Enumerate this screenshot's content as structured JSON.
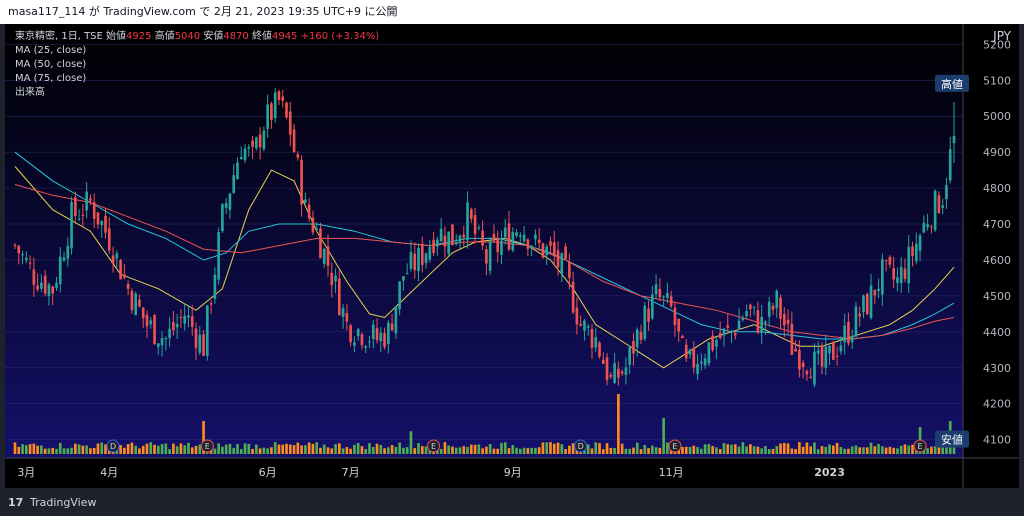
{
  "header": {
    "publish_line": "masa117_114 が TradingView.com で 2月 21, 2023 19:35 UTC+9 に公開"
  },
  "legend": {
    "symbol_line": "東京精密, 1日, TSE",
    "open_label": "始値",
    "open": "4925",
    "high_label": "高値",
    "high": "5040",
    "low_label": "安値",
    "low": "4870",
    "close_label": "終値",
    "close": "4945",
    "change": "+160 (+3.34%)",
    "ma25": "MA (25, close)",
    "ma50": "MA (50, close)",
    "ma75": "MA (75, close)",
    "volume": "出来高"
  },
  "axis": {
    "currency": "JPY",
    "high_tag": "高値",
    "low_tag": "安値"
  },
  "footer": {
    "brand": "TradingView",
    "logo_glyph": "17"
  },
  "colors": {
    "up": "#26a69a",
    "down": "#ef5350",
    "vol_up": "#4caf50",
    "vol_down": "#ff8c1a",
    "ma25": "#e8d44d",
    "ma50": "#26c6da",
    "ma75": "#ef5350",
    "bg_top": "#000000",
    "bg_bottom": "#14106a",
    "tag_bg": "#1c3d6e"
  },
  "chart_data": {
    "type": "candlestick",
    "title": "東京精密, 1日, TSE",
    "ylabel": "JPY",
    "ylim": [
      4060,
      5240
    ],
    "y_ticks": [
      4100,
      4200,
      4300,
      4400,
      4500,
      4600,
      4700,
      4800,
      4900,
      5000,
      5100,
      5200
    ],
    "x_ticks": [
      {
        "label": "3月",
        "day": 3
      },
      {
        "label": "4月",
        "day": 25
      },
      {
        "label": "6月",
        "day": 67
      },
      {
        "label": "7月",
        "day": 89
      },
      {
        "label": "9月",
        "day": 132
      },
      {
        "label": "11月",
        "day": 174
      },
      {
        "label": "2023",
        "day": 216
      }
    ],
    "event_markers": [
      {
        "label": "D",
        "day": 26
      },
      {
        "label": "E",
        "day": 51
      },
      {
        "label": "E",
        "day": 111
      },
      {
        "label": "D",
        "day": 150
      },
      {
        "label": "E",
        "day": 175
      },
      {
        "label": "E",
        "day": 240
      }
    ],
    "close_path": [
      [
        0,
        4640
      ],
      [
        5,
        4560
      ],
      [
        10,
        4520
      ],
      [
        15,
        4720
      ],
      [
        20,
        4760
      ],
      [
        25,
        4660
      ],
      [
        30,
        4520
      ],
      [
        35,
        4420
      ],
      [
        40,
        4380
      ],
      [
        45,
        4450
      ],
      [
        50,
        4360
      ],
      [
        55,
        4720
      ],
      [
        60,
        4920
      ],
      [
        63,
        4880
      ],
      [
        66,
        4980
      ],
      [
        70,
        5040
      ],
      [
        73,
        4960
      ],
      [
        77,
        4740
      ],
      [
        80,
        4680
      ],
      [
        84,
        4560
      ],
      [
        88,
        4420
      ],
      [
        92,
        4400
      ],
      [
        96,
        4380
      ],
      [
        99,
        4400
      ],
      [
        103,
        4560
      ],
      [
        107,
        4600
      ],
      [
        112,
        4680
      ],
      [
        116,
        4660
      ],
      [
        120,
        4720
      ],
      [
        125,
        4600
      ],
      [
        130,
        4660
      ],
      [
        134,
        4700
      ],
      [
        138,
        4640
      ],
      [
        142,
        4620
      ],
      [
        146,
        4560
      ],
      [
        150,
        4420
      ],
      [
        154,
        4380
      ],
      [
        158,
        4260
      ],
      [
        162,
        4300
      ],
      [
        166,
        4420
      ],
      [
        170,
        4500
      ],
      [
        174,
        4460
      ],
      [
        178,
        4300
      ],
      [
        182,
        4340
      ],
      [
        186,
        4380
      ],
      [
        190,
        4400
      ],
      [
        194,
        4460
      ],
      [
        198,
        4420
      ],
      [
        202,
        4480
      ],
      [
        206,
        4360
      ],
      [
        210,
        4320
      ],
      [
        214,
        4300
      ],
      [
        218,
        4360
      ],
      [
        222,
        4420
      ],
      [
        226,
        4480
      ],
      [
        230,
        4560
      ],
      [
        234,
        4540
      ],
      [
        238,
        4620
      ],
      [
        242,
        4720
      ],
      [
        246,
        4780
      ],
      [
        249,
        4945
      ]
    ],
    "series": [
      {
        "name": "MA (25, close)",
        "points": [
          [
            0,
            4860
          ],
          [
            10,
            4740
          ],
          [
            20,
            4680
          ],
          [
            28,
            4560
          ],
          [
            38,
            4520
          ],
          [
            48,
            4460
          ],
          [
            55,
            4520
          ],
          [
            62,
            4740
          ],
          [
            68,
            4850
          ],
          [
            74,
            4820
          ],
          [
            80,
            4680
          ],
          [
            88,
            4540
          ],
          [
            94,
            4450
          ],
          [
            98,
            4440
          ],
          [
            104,
            4500
          ],
          [
            110,
            4560
          ],
          [
            116,
            4620
          ],
          [
            122,
            4650
          ],
          [
            130,
            4660
          ],
          [
            136,
            4640
          ],
          [
            142,
            4600
          ],
          [
            148,
            4520
          ],
          [
            154,
            4420
          ],
          [
            160,
            4380
          ],
          [
            166,
            4340
          ],
          [
            172,
            4300
          ],
          [
            178,
            4340
          ],
          [
            184,
            4380
          ],
          [
            190,
            4400
          ],
          [
            196,
            4420
          ],
          [
            202,
            4390
          ],
          [
            208,
            4360
          ],
          [
            214,
            4360
          ],
          [
            220,
            4380
          ],
          [
            226,
            4400
          ],
          [
            232,
            4420
          ],
          [
            238,
            4460
          ],
          [
            244,
            4520
          ],
          [
            249,
            4580
          ]
        ]
      },
      {
        "name": "MA (50, close)",
        "points": [
          [
            0,
            4900
          ],
          [
            10,
            4820
          ],
          [
            20,
            4760
          ],
          [
            30,
            4700
          ],
          [
            40,
            4660
          ],
          [
            50,
            4600
          ],
          [
            56,
            4620
          ],
          [
            62,
            4680
          ],
          [
            70,
            4700
          ],
          [
            80,
            4700
          ],
          [
            90,
            4680
          ],
          [
            100,
            4650
          ],
          [
            110,
            4640
          ],
          [
            120,
            4660
          ],
          [
            128,
            4660
          ],
          [
            136,
            4640
          ],
          [
            142,
            4620
          ],
          [
            150,
            4580
          ],
          [
            158,
            4540
          ],
          [
            166,
            4500
          ],
          [
            174,
            4460
          ],
          [
            182,
            4420
          ],
          [
            190,
            4400
          ],
          [
            198,
            4400
          ],
          [
            206,
            4390
          ],
          [
            214,
            4380
          ],
          [
            222,
            4380
          ],
          [
            230,
            4390
          ],
          [
            238,
            4420
          ],
          [
            244,
            4450
          ],
          [
            249,
            4480
          ]
        ]
      },
      {
        "name": "MA (75, close)",
        "points": [
          [
            0,
            4810
          ],
          [
            10,
            4780
          ],
          [
            20,
            4760
          ],
          [
            30,
            4720
          ],
          [
            40,
            4680
          ],
          [
            50,
            4630
          ],
          [
            60,
            4620
          ],
          [
            70,
            4640
          ],
          [
            80,
            4660
          ],
          [
            90,
            4660
          ],
          [
            100,
            4650
          ],
          [
            110,
            4640
          ],
          [
            120,
            4650
          ],
          [
            128,
            4650
          ],
          [
            136,
            4640
          ],
          [
            146,
            4600
          ],
          [
            156,
            4540
          ],
          [
            166,
            4500
          ],
          [
            176,
            4480
          ],
          [
            186,
            4460
          ],
          [
            196,
            4430
          ],
          [
            206,
            4400
          ],
          [
            214,
            4390
          ],
          [
            222,
            4380
          ],
          [
            230,
            4390
          ],
          [
            238,
            4410
          ],
          [
            244,
            4430
          ],
          [
            249,
            4440
          ]
        ]
      }
    ],
    "volume": {
      "note": "relative heights 0-1",
      "spikes": [
        {
          "day": 50,
          "h": 0.55
        },
        {
          "day": 105,
          "h": 0.38
        },
        {
          "day": 160,
          "h": 1.0
        },
        {
          "day": 172,
          "h": 0.6
        },
        {
          "day": 240,
          "h": 0.45
        },
        {
          "day": 248,
          "h": 0.55
        }
      ]
    },
    "last_close": 4945,
    "high": 5040,
    "low": 4870
  }
}
